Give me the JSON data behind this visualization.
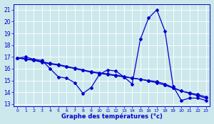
{
  "xlabel": "Graphe des températures (°c)",
  "bg_color": "#cce8ec",
  "line_color": "#0000cc",
  "xlim": [
    -0.5,
    23.5
  ],
  "ylim": [
    12.8,
    21.5
  ],
  "yticks": [
    13,
    14,
    15,
    16,
    17,
    18,
    19,
    20,
    21
  ],
  "xticks": [
    0,
    1,
    2,
    3,
    4,
    5,
    6,
    7,
    8,
    9,
    10,
    11,
    12,
    13,
    14,
    15,
    16,
    17,
    18,
    19,
    20,
    21,
    22,
    23
  ],
  "series": [
    [
      16.9,
      17.0,
      16.8,
      16.7,
      16.0,
      15.3,
      15.2,
      14.8,
      13.9,
      14.4,
      15.5,
      15.9,
      15.8,
      15.3,
      14.7,
      18.5,
      20.3,
      21.0,
      19.2,
      14.5,
      13.3,
      13.5,
      13.5,
      13.3
    ],
    [
      16.9,
      16.8,
      16.7,
      16.55,
      16.4,
      16.3,
      16.15,
      16.0,
      15.85,
      15.7,
      15.6,
      15.5,
      15.4,
      15.3,
      15.2,
      15.1,
      15.0,
      14.9,
      14.7,
      14.4,
      14.1,
      13.9,
      13.7,
      13.5
    ],
    [
      16.9,
      16.85,
      16.75,
      16.6,
      16.45,
      16.35,
      16.2,
      16.05,
      15.9,
      15.75,
      15.65,
      15.55,
      15.45,
      15.35,
      15.2,
      15.1,
      14.95,
      14.8,
      14.6,
      14.35,
      14.1,
      13.95,
      13.8,
      13.6
    ]
  ]
}
